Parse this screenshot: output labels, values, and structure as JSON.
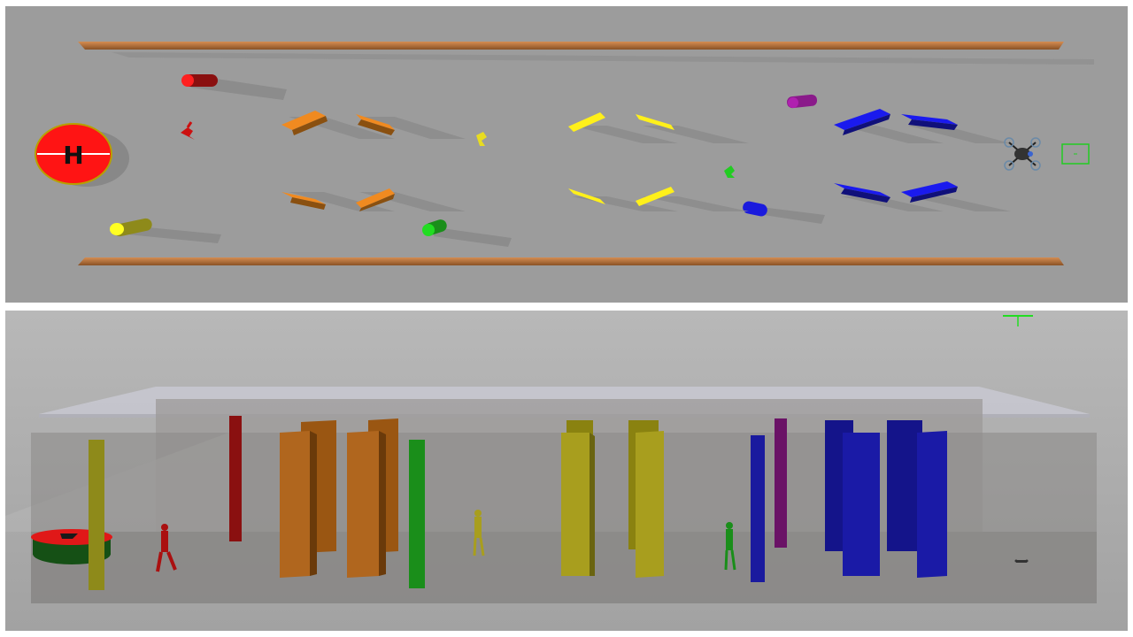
{
  "top_view": {
    "helipad_letter": "H",
    "colors": {
      "floor": "#9c9c9c",
      "rail": "#a4673a",
      "rail_highlight": "#d08a4e",
      "helipad": "#ff1a1a",
      "orange": "#e0831e",
      "yellow": "#f2ea1a",
      "blue": "#1a1aee",
      "red_pillar": "#cc1212",
      "olive_pillar": "#c6c21a",
      "green_pillar": "#20c020",
      "purple_pillar": "#8a1a8a",
      "blue_pillar": "#1a1add",
      "drone": "#222222",
      "target_box": "#20c020"
    }
  },
  "side_view": {
    "colors": {
      "background": "#a6a6a6",
      "floor": "#8e8c88",
      "ceiling_slab": "#c4c4cc",
      "orange_wall": "#a8621a",
      "yellow_wall": "#a29a1a",
      "blue_wall": "#1a1aa6",
      "red_pillar": "#8a1010",
      "olive_pillar": "#8e8a1a",
      "green_pillar": "#1a8e1a",
      "purple_pillar": "#6a1266",
      "blue_pillar": "#1a1a9e",
      "crosshair": "#20d020"
    }
  }
}
